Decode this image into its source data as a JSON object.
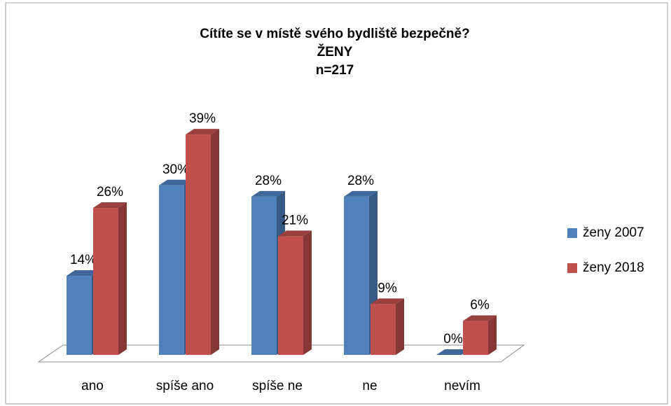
{
  "chart_data": {
    "type": "bar3d",
    "title": [
      "Cítíte se v místě svého bydliště bezpečně?",
      "ŽENY",
      "n=217"
    ],
    "categories": [
      "ano",
      "spíše ano",
      "spíše ne",
      "ne",
      "nevím"
    ],
    "series": [
      {
        "name": "ženy 2007",
        "color": "#4f81bd",
        "values": [
          14,
          30,
          28,
          28,
          0
        ],
        "value_labels": [
          "14%",
          "30%",
          "28%",
          "28%",
          "0%"
        ]
      },
      {
        "name": "ženy 2018",
        "color": "#c0504d",
        "values": [
          26,
          39,
          21,
          9,
          6
        ],
        "value_labels": [
          "26%",
          "39%",
          "21%",
          "9%",
          "6%"
        ]
      }
    ],
    "ylim": [
      0,
      40
    ],
    "legend": "right"
  }
}
